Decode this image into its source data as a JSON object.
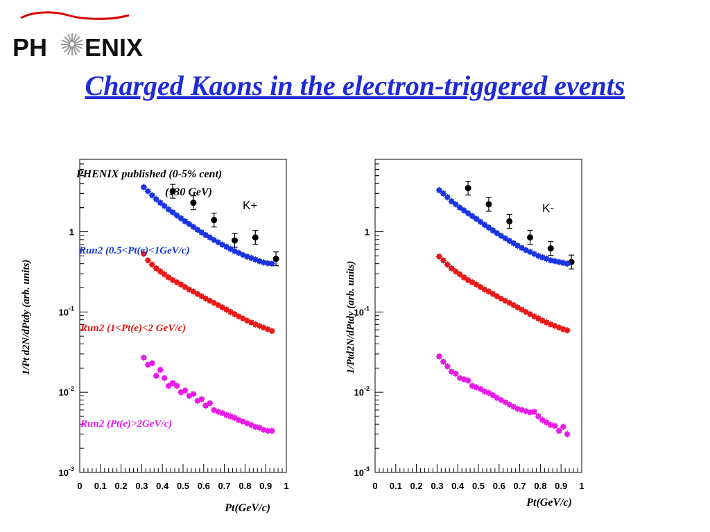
{
  "logo": {
    "left_text": "PH",
    "right_text": "ENIX",
    "alt": "PHENIX"
  },
  "title": "Charged Kaons in the electron-triggered events",
  "colors": {
    "title": "#1f2bd6",
    "published": "#000000",
    "run2_low": "#1a35e0",
    "run2_mid": "#e81a1a",
    "run2_high": "#e81ae8",
    "logo_swoosh": "#d40000"
  },
  "chart_data": [
    {
      "type": "scatter",
      "panel": "K+",
      "ylabel": "1/Pt d2N/dPtdy (arb. units)",
      "xlabel": "Pt(GeV/c)",
      "xlim": [
        0,
        1
      ],
      "ylim": [
        0.001,
        8
      ],
      "yscale": "log",
      "xticks": [
        "0",
        "0.1",
        "0.2",
        "0.3",
        "0.4",
        "0.5",
        "0.6",
        "0.7",
        "0.8",
        "0.9",
        "1"
      ],
      "yticks": [
        {
          "value": 1,
          "base": "1",
          "exp": ""
        },
        {
          "value": 0.1,
          "base": "10",
          "exp": "-1"
        },
        {
          "value": 0.01,
          "base": "10",
          "exp": "-2"
        },
        {
          "value": 0.001,
          "base": "10",
          "exp": "-3"
        }
      ],
      "annotations": [
        "PHENIX published (0-5% cent)",
        "(130 GeV)",
        "K+"
      ],
      "series": [
        {
          "name": "PHENIX published (0-5% cent)",
          "color": "#000000",
          "marker": "errorbar",
          "x": [
            0.45,
            0.55,
            0.65,
            0.75,
            0.85,
            0.95
          ],
          "y": [
            3.2,
            2.3,
            1.4,
            0.78,
            0.85,
            0.46
          ]
        },
        {
          "name": "Run2 (0.5<Pt(e)<1GeV/c)",
          "color": "#1a35e0",
          "marker": "star",
          "x": [
            0.31,
            0.33,
            0.35,
            0.37,
            0.39,
            0.41,
            0.43,
            0.45,
            0.47,
            0.49,
            0.51,
            0.53,
            0.55,
            0.57,
            0.59,
            0.61,
            0.63,
            0.65,
            0.67,
            0.69,
            0.71,
            0.73,
            0.75,
            0.77,
            0.79,
            0.81,
            0.83,
            0.85,
            0.87,
            0.89,
            0.91,
            0.93
          ],
          "y": [
            3.6,
            3.2,
            2.85,
            2.55,
            2.3,
            2.1,
            1.9,
            1.75,
            1.6,
            1.47,
            1.35,
            1.25,
            1.15,
            1.06,
            0.98,
            0.91,
            0.85,
            0.79,
            0.74,
            0.69,
            0.65,
            0.61,
            0.575,
            0.545,
            0.515,
            0.49,
            0.47,
            0.45,
            0.43,
            0.415,
            0.405,
            0.4
          ]
        },
        {
          "name": "Run2 (1<Pt(e)<2 GeV/c)",
          "color": "#e81a1a",
          "marker": "star",
          "x": [
            0.31,
            0.33,
            0.35,
            0.37,
            0.39,
            0.41,
            0.43,
            0.45,
            0.47,
            0.49,
            0.51,
            0.53,
            0.55,
            0.57,
            0.59,
            0.61,
            0.63,
            0.65,
            0.67,
            0.69,
            0.71,
            0.73,
            0.75,
            0.77,
            0.79,
            0.81,
            0.83,
            0.85,
            0.87,
            0.89,
            0.91,
            0.93
          ],
          "y": [
            0.53,
            0.44,
            0.39,
            0.35,
            0.32,
            0.295,
            0.27,
            0.25,
            0.235,
            0.22,
            0.205,
            0.19,
            0.18,
            0.168,
            0.157,
            0.147,
            0.138,
            0.13,
            0.122,
            0.114,
            0.107,
            0.1,
            0.094,
            0.088,
            0.083,
            0.078,
            0.074,
            0.07,
            0.067,
            0.064,
            0.061,
            0.058
          ]
        },
        {
          "name": "Run2 (Pt(e)>2GeV/c)",
          "color": "#e81ae8",
          "marker": "star",
          "x": [
            0.31,
            0.33,
            0.35,
            0.37,
            0.39,
            0.41,
            0.43,
            0.45,
            0.47,
            0.49,
            0.51,
            0.53,
            0.55,
            0.57,
            0.59,
            0.61,
            0.63,
            0.65,
            0.67,
            0.69,
            0.71,
            0.73,
            0.75,
            0.77,
            0.79,
            0.81,
            0.83,
            0.85,
            0.87,
            0.89,
            0.91,
            0.93
          ],
          "y": [
            0.027,
            0.022,
            0.023,
            0.016,
            0.019,
            0.015,
            0.012,
            0.013,
            0.012,
            0.01,
            0.0105,
            0.009,
            0.0095,
            0.0078,
            0.0082,
            0.0068,
            0.0073,
            0.006,
            0.0057,
            0.0055,
            0.0052,
            0.005,
            0.0048,
            0.0045,
            0.0043,
            0.0041,
            0.0039,
            0.0037,
            0.0036,
            0.0034,
            0.0033,
            0.0033
          ]
        }
      ]
    },
    {
      "type": "scatter",
      "panel": "K-",
      "ylabel": "1/Ptd2N/dPtdy (arb. units)",
      "xlabel": "Pt(GeV/c)",
      "xlim": [
        0,
        1
      ],
      "ylim": [
        0.001,
        8
      ],
      "yscale": "log",
      "xticks": [
        "0",
        "0.1",
        "0.2",
        "0.3",
        "0.4",
        "0.5",
        "0.6",
        "0.7",
        "0.8",
        "0.9",
        "1"
      ],
      "yticks": [
        {
          "value": 1,
          "base": "1",
          "exp": ""
        },
        {
          "value": 0.1,
          "base": "10",
          "exp": "-1"
        },
        {
          "value": 0.01,
          "base": "10",
          "exp": "-2"
        },
        {
          "value": 0.001,
          "base": "10",
          "exp": "-3"
        }
      ],
      "annotations": [
        "K-"
      ],
      "series": [
        {
          "color": "#000000",
          "marker": "errorbar",
          "x": [
            0.45,
            0.55,
            0.65,
            0.75,
            0.85,
            0.95
          ],
          "y": [
            3.5,
            2.2,
            1.35,
            0.85,
            0.62,
            0.42
          ]
        },
        {
          "color": "#1a35e0",
          "marker": "star",
          "x": [
            0.31,
            0.33,
            0.35,
            0.37,
            0.39,
            0.41,
            0.43,
            0.45,
            0.47,
            0.49,
            0.51,
            0.53,
            0.55,
            0.57,
            0.59,
            0.61,
            0.63,
            0.65,
            0.67,
            0.69,
            0.71,
            0.73,
            0.75,
            0.77,
            0.79,
            0.81,
            0.83,
            0.85,
            0.87,
            0.89,
            0.91,
            0.93
          ],
          "y": [
            3.3,
            3.0,
            2.7,
            2.4,
            2.2,
            2.0,
            1.85,
            1.7,
            1.57,
            1.45,
            1.33,
            1.22,
            1.13,
            1.04,
            0.96,
            0.89,
            0.83,
            0.77,
            0.72,
            0.67,
            0.63,
            0.59,
            0.56,
            0.53,
            0.5,
            0.48,
            0.46,
            0.44,
            0.43,
            0.42,
            0.41,
            0.4
          ]
        },
        {
          "color": "#e81a1a",
          "marker": "star",
          "x": [
            0.31,
            0.33,
            0.35,
            0.37,
            0.39,
            0.41,
            0.43,
            0.45,
            0.47,
            0.49,
            0.51,
            0.53,
            0.55,
            0.57,
            0.59,
            0.61,
            0.63,
            0.65,
            0.67,
            0.69,
            0.71,
            0.73,
            0.75,
            0.77,
            0.79,
            0.81,
            0.83,
            0.85,
            0.87,
            0.89,
            0.91,
            0.93
          ],
          "y": [
            0.49,
            0.44,
            0.39,
            0.35,
            0.32,
            0.295,
            0.27,
            0.25,
            0.235,
            0.22,
            0.205,
            0.19,
            0.18,
            0.168,
            0.157,
            0.147,
            0.138,
            0.13,
            0.122,
            0.114,
            0.107,
            0.1,
            0.094,
            0.088,
            0.083,
            0.078,
            0.074,
            0.07,
            0.067,
            0.064,
            0.061,
            0.059
          ]
        },
        {
          "color": "#e81ae8",
          "marker": "star",
          "x": [
            0.31,
            0.33,
            0.35,
            0.37,
            0.39,
            0.41,
            0.43,
            0.45,
            0.47,
            0.49,
            0.51,
            0.53,
            0.55,
            0.57,
            0.59,
            0.61,
            0.63,
            0.65,
            0.67,
            0.69,
            0.71,
            0.73,
            0.75,
            0.77,
            0.79,
            0.81,
            0.83,
            0.85,
            0.87,
            0.89,
            0.91,
            0.93
          ],
          "y": [
            0.028,
            0.024,
            0.021,
            0.018,
            0.017,
            0.015,
            0.0145,
            0.014,
            0.012,
            0.0115,
            0.011,
            0.0102,
            0.0098,
            0.0092,
            0.0085,
            0.008,
            0.0075,
            0.007,
            0.0066,
            0.0062,
            0.006,
            0.0058,
            0.0056,
            0.0057,
            0.005,
            0.0045,
            0.0042,
            0.0039,
            0.0038,
            0.0033,
            0.0037,
            0.003
          ]
        }
      ]
    }
  ]
}
